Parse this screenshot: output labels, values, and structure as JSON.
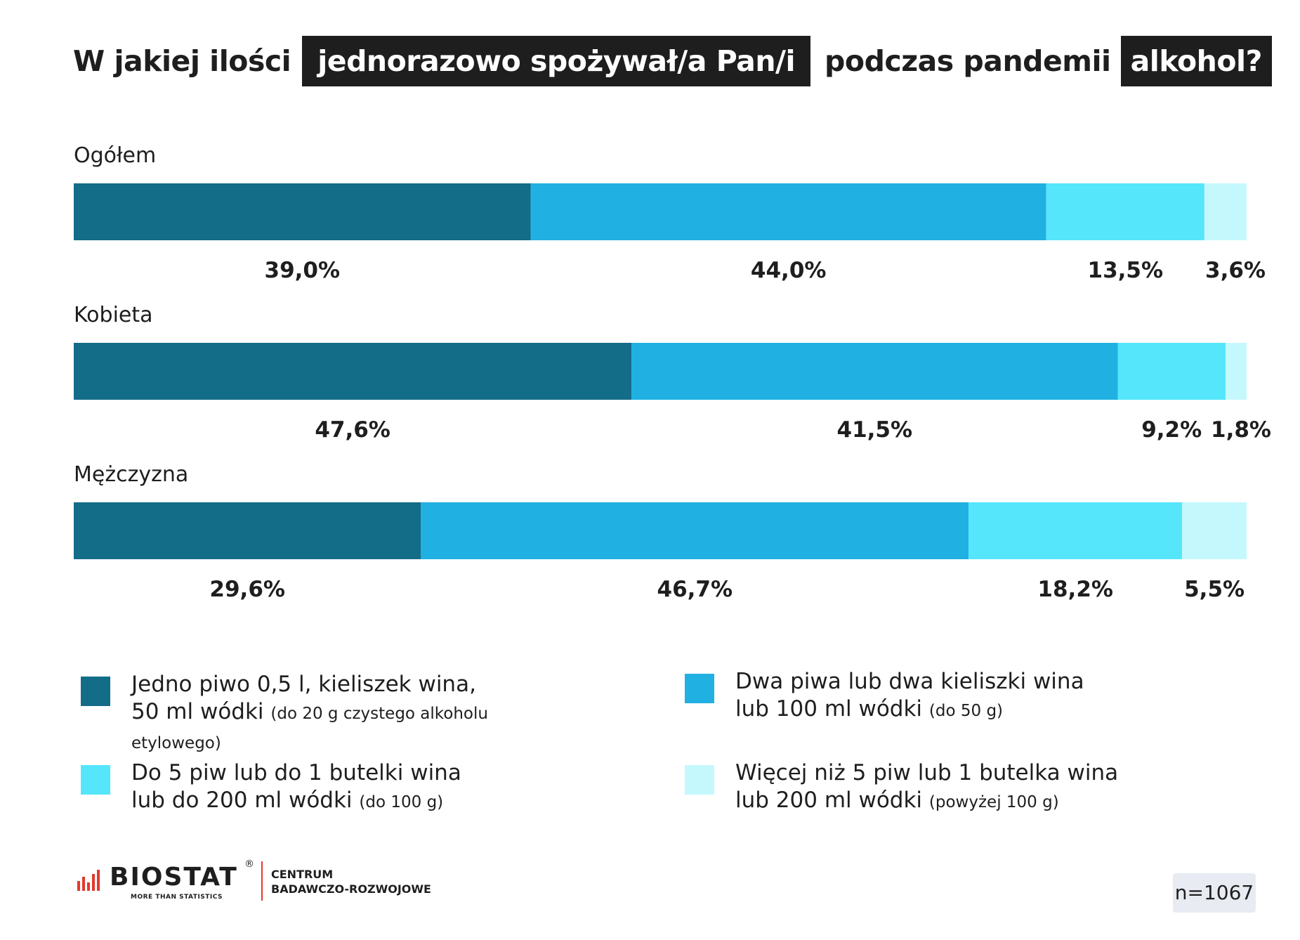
{
  "title": {
    "part1": "W jakiej ilości",
    "part2": "jednorazowo spożywał/a Pan/i",
    "part3": "podczas pandemii",
    "part4": "alkohol?"
  },
  "colors": {
    "title_box": "#1e1e1e",
    "cat1": "#136c88",
    "cat2": "#20b0e2",
    "cat3": "#55e6fc",
    "cat4": "#c5f8fd",
    "logo_divider": "#e03a2e",
    "badge_bg": "#e9ebf3"
  },
  "chart_data": {
    "type": "bar",
    "orientation": "horizontal",
    "stacked": true,
    "percent_format": "decimal_comma",
    "categories": [
      "Ogółem",
      "Kobieta",
      "Mężczyzna"
    ],
    "series": [
      {
        "name": "Jedno piwo 0,5 l, kieliszek wina, 50 ml wódki (do 20 g czystego alkoholu etylowego)",
        "values": [
          39.0,
          47.6,
          29.6
        ]
      },
      {
        "name": "Dwa piwa lub dwa kieliszki wina lub 100 ml wódki (do 50 g)",
        "values": [
          44.0,
          41.5,
          46.7
        ]
      },
      {
        "name": "Do 5 piw lub do 1 butelki wina lub do 200 ml wódki (do 100 g)",
        "values": [
          13.5,
          9.2,
          18.2
        ]
      },
      {
        "name": "Więcej niż 5 piw lub 1 butelka wina lub 200 ml wódki (powyżej 100 g)",
        "values": [
          3.6,
          1.8,
          5.5
        ]
      }
    ],
    "xlim": [
      0,
      100
    ],
    "legend_position": "bottom",
    "grid": false
  },
  "legend": {
    "items": [
      {
        "line1": "Jedno piwo 0,5 l, kieliszek wina,",
        "line2": "50 ml wódki",
        "note": "(do 20 g czystego alkoholu etylowego)"
      },
      {
        "line1": "Dwa piwa lub dwa kieliszki wina",
        "line2": "lub 100 ml wódki",
        "note": "(do 50 g)"
      },
      {
        "line1": "Do 5 piw lub do 1 butelki wina",
        "line2": "lub do 200 ml wódki",
        "note": "(do 100 g)"
      },
      {
        "line1": "Więcej niż 5 piw lub 1 butelka wina",
        "line2": "lub 200 ml wódki",
        "note": "(powyżej 100 g)"
      }
    ]
  },
  "footer": {
    "logo_word": "BIOSTAT",
    "logo_reg": "®",
    "logo_tagline": "MORE THAN STATISTICS",
    "centre_line1": "CENTRUM",
    "centre_line2": "BADAWCZO-ROZWOJOWE",
    "sample_size": "n=1067"
  }
}
